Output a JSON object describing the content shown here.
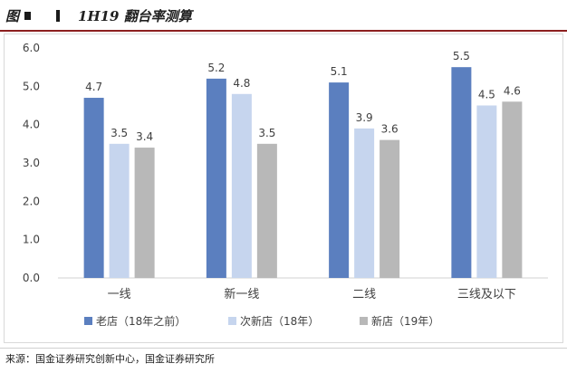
{
  "figure": {
    "label": "图",
    "title": "1H19 翻台率测算"
  },
  "source": "来源：国金证券研究创新中心，国金证券研究所",
  "chart_data": {
    "type": "bar",
    "title": "1H19 翻台率测算",
    "xlabel": "",
    "ylabel": "",
    "categories": [
      "一线",
      "新一线",
      "二线",
      "三线及以下"
    ],
    "series": [
      {
        "name": "老店（18年之前）",
        "values": [
          4.7,
          5.2,
          5.1,
          5.5
        ],
        "color": "#5b7fbf"
      },
      {
        "name": "次新店（18年）",
        "values": [
          3.5,
          4.8,
          3.9,
          4.5
        ],
        "color": "#c6d5ee"
      },
      {
        "name": "新店（19年）",
        "values": [
          3.4,
          3.5,
          3.6,
          4.6
        ],
        "color": "#b8b8b8"
      }
    ],
    "ylim": [
      0,
      6
    ],
    "yticks": [
      "0.0",
      "1.0",
      "2.0",
      "3.0",
      "4.0",
      "5.0",
      "6.0"
    ],
    "data_labels": [
      [
        "4.7",
        "5.2",
        "5.1",
        "5.5"
      ],
      [
        "3.5",
        "4.8",
        "3.9",
        "4.5"
      ],
      [
        "3.4",
        "3.5",
        "3.6",
        "4.6"
      ]
    ],
    "grid": false,
    "legend_position": "bottom"
  }
}
